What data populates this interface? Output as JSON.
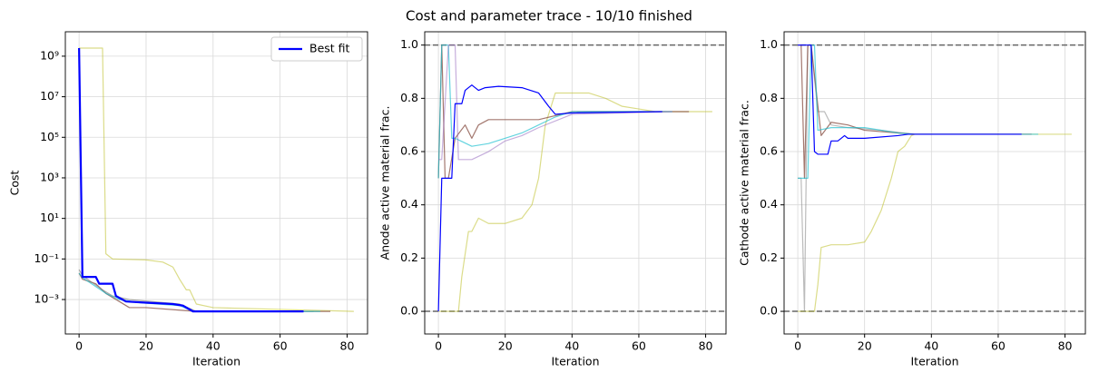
{
  "title": "Cost and parameter trace - 10/10 finished",
  "chart_data": [
    {
      "type": "line",
      "xlabel": "Iteration",
      "ylabel": "Cost",
      "yscale": "log",
      "grid": true,
      "legend": "upper right",
      "xlim": [
        -4.1,
        86.1
      ],
      "xticks": [
        0,
        20,
        40,
        60,
        80
      ],
      "ylim": [
        2e-05,
        16000000000
      ],
      "yticks": [
        {
          "value": 0.001,
          "label": "10⁻³"
        },
        {
          "value": 0.1,
          "label": "10⁻¹"
        },
        {
          "value": 10,
          "label": "10¹"
        },
        {
          "value": 1000,
          "label": "10³"
        },
        {
          "value": 100000,
          "label": "10⁵"
        },
        {
          "value": 10000000,
          "label": "10⁷"
        },
        {
          "value": 1000000000,
          "label": "10⁹"
        }
      ],
      "series": [
        {
          "color": "#bcbd2288",
          "x": [
            0,
            7,
            8,
            10,
            20,
            25,
            28,
            30,
            32,
            33,
            35,
            40,
            82
          ],
          "values": [
            2500000000,
            2500000000,
            0.18,
            0.1,
            0.09,
            0.07,
            0.04,
            0.01,
            0.003,
            0.003,
            0.0006,
            0.0004,
            0.00026
          ]
        },
        {
          "color": "#8c564bcc",
          "x": [
            0,
            1,
            5,
            8,
            12,
            15,
            20,
            30,
            35,
            75
          ],
          "values": [
            0.02,
            0.01,
            0.006,
            0.002,
            0.0008,
            0.0004,
            0.0004,
            0.0003,
            0.00026,
            0.00026
          ]
        },
        {
          "color": "#7f7f7faa",
          "x": [
            0,
            1,
            7,
            10,
            15,
            30,
            35,
            70
          ],
          "values": [
            0.03,
            0.015,
            0.003,
            0.0015,
            0.001,
            0.0006,
            0.00026,
            0.00026
          ]
        },
        {
          "color": "#17becfaa",
          "x": [
            0,
            1,
            8,
            12,
            18,
            30,
            34,
            72
          ],
          "values": [
            0.02,
            0.012,
            0.002,
            0.001,
            0.0007,
            0.0005,
            0.00026,
            0.00026
          ]
        },
        {
          "name": "Best fit",
          "color": "#0000ff",
          "x": [
            0,
            1,
            5,
            6,
            10,
            11,
            14,
            20,
            28,
            31,
            34,
            67
          ],
          "values": [
            2500000000,
            0.013,
            0.013,
            0.006,
            0.006,
            0.0015,
            0.0008,
            0.0007,
            0.0006,
            0.0005,
            0.00026,
            0.00026
          ]
        }
      ]
    },
    {
      "type": "line",
      "xlabel": "Iteration",
      "ylabel": "Anode active material frac.",
      "grid": true,
      "xlim": [
        -4.1,
        86.1
      ],
      "xticks": [
        0,
        20,
        40,
        60,
        80
      ],
      "ylim": [
        -0.085,
        1.05
      ],
      "yticks": [
        {
          "value": 0,
          "label": "0.0"
        },
        0.2,
        0.4,
        0.6,
        0.8,
        {
          "value": 1,
          "label": "1.0"
        }
      ],
      "hlines": [
        0,
        1
      ],
      "series": [
        {
          "color": "#bcbd2288",
          "x": [
            0,
            6,
            7,
            9,
            10,
            12,
            15,
            20,
            25,
            28,
            30,
            32,
            35,
            45,
            50,
            55,
            60,
            65,
            82
          ],
          "values": [
            0,
            0,
            0.13,
            0.3,
            0.3,
            0.35,
            0.33,
            0.33,
            0.35,
            0.4,
            0.5,
            0.7,
            0.82,
            0.82,
            0.8,
            0.77,
            0.76,
            0.75,
            0.75
          ]
        },
        {
          "color": "#8c564bcc",
          "x": [
            0,
            1,
            2,
            3,
            5,
            8,
            10,
            12,
            15,
            20,
            30,
            40,
            60,
            75
          ],
          "values": [
            0.5,
            1,
            0.5,
            0.5,
            0.65,
            0.7,
            0.65,
            0.7,
            0.72,
            0.72,
            0.72,
            0.75,
            0.75,
            0.75
          ]
        },
        {
          "color": "#17becfaa",
          "x": [
            0,
            1,
            3,
            4,
            5,
            10,
            15,
            20,
            25,
            30,
            35,
            40,
            70
          ],
          "values": [
            0.5,
            1,
            1,
            0.65,
            0.65,
            0.62,
            0.63,
            0.65,
            0.67,
            0.7,
            0.73,
            0.75,
            0.75
          ]
        },
        {
          "color": "#9467bd88",
          "x": [
            0,
            1,
            3,
            5,
            6,
            10,
            15,
            20,
            25,
            30,
            40,
            70
          ],
          "values": [
            0.57,
            0.57,
            1,
            1,
            0.57,
            0.57,
            0.6,
            0.64,
            0.66,
            0.69,
            0.74,
            0.75
          ]
        },
        {
          "color": "#0000ff",
          "x": [
            0,
            1,
            4,
            5,
            7,
            8,
            10,
            12,
            14,
            18,
            25,
            30,
            33,
            35,
            40,
            67
          ],
          "values": [
            0,
            0.5,
            0.5,
            0.78,
            0.78,
            0.83,
            0.85,
            0.83,
            0.84,
            0.845,
            0.84,
            0.82,
            0.77,
            0.74,
            0.745,
            0.75
          ]
        }
      ]
    },
    {
      "type": "line",
      "xlabel": "Iteration",
      "ylabel": "Cathode active material frac.",
      "grid": true,
      "xlim": [
        -4.1,
        86.1
      ],
      "xticks": [
        0,
        20,
        40,
        60,
        80
      ],
      "ylim": [
        -0.085,
        1.05
      ],
      "yticks": [
        {
          "value": 0,
          "label": "0.0"
        },
        0.2,
        0.4,
        0.6,
        0.8,
        {
          "value": 1,
          "label": "1.0"
        }
      ],
      "hlines": [
        0,
        1
      ],
      "series": [
        {
          "color": "#bcbd2288",
          "x": [
            0,
            5,
            6,
            7,
            10,
            15,
            20,
            22,
            25,
            28,
            30,
            32,
            34,
            35,
            82
          ],
          "values": [
            0,
            0,
            0.1,
            0.24,
            0.25,
            0.25,
            0.26,
            0.3,
            0.38,
            0.5,
            0.6,
            0.62,
            0.66,
            0.665,
            0.665
          ]
        },
        {
          "color": "#7f7f7f88",
          "x": [
            0,
            1,
            2,
            3,
            4,
            6,
            8,
            10,
            15,
            25,
            35,
            60
          ],
          "values": [
            0.5,
            0.5,
            0,
            1,
            1,
            0.75,
            0.75,
            0.7,
            0.69,
            0.68,
            0.665,
            0.665
          ]
        },
        {
          "color": "#8c564bcc",
          "x": [
            0,
            1,
            2,
            3,
            4,
            7,
            10,
            15,
            20,
            30,
            35,
            70
          ],
          "values": [
            1,
            1,
            0.5,
            1,
            1,
            0.66,
            0.71,
            0.7,
            0.68,
            0.67,
            0.665,
            0.665
          ]
        },
        {
          "color": "#17becfaa",
          "x": [
            0,
            3,
            4,
            5,
            6,
            10,
            20,
            30,
            35,
            72
          ],
          "values": [
            0.5,
            0.5,
            1,
            1,
            0.68,
            0.69,
            0.69,
            0.67,
            0.665,
            0.665
          ]
        },
        {
          "color": "#0000ff",
          "x": [
            0,
            4,
            5,
            6,
            9,
            10,
            12,
            14,
            15,
            20,
            30,
            33,
            35,
            67
          ],
          "values": [
            1,
            1,
            0.6,
            0.59,
            0.59,
            0.64,
            0.64,
            0.66,
            0.65,
            0.65,
            0.66,
            0.665,
            0.665,
            0.665
          ]
        }
      ]
    }
  ]
}
